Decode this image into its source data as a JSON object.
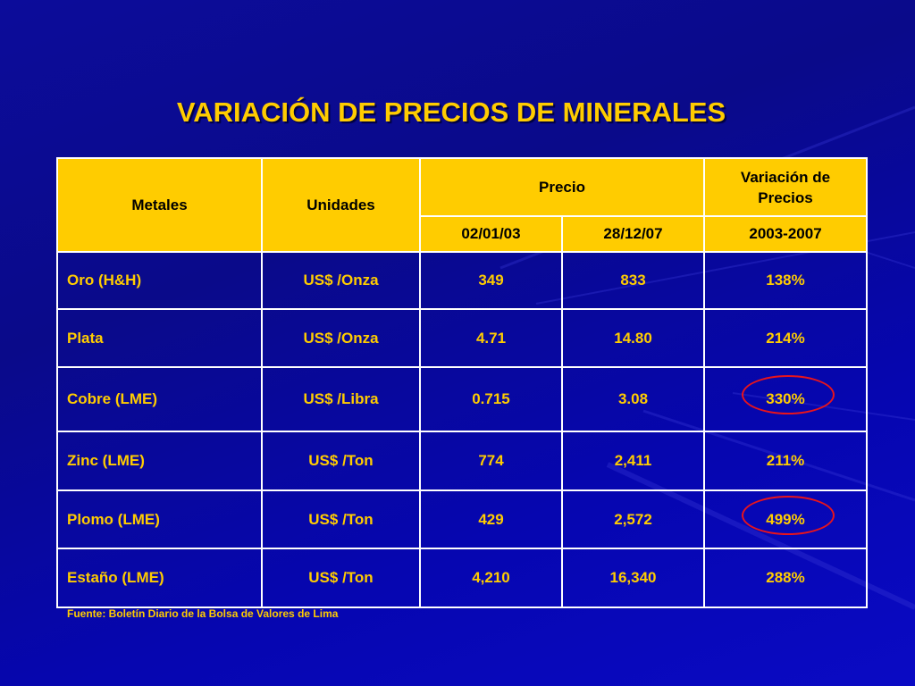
{
  "slide": {
    "title": "VARIACIÓN DE PRECIOS DE MINERALES",
    "source_note": "Fuente: Boletín Diario de la Bolsa de Valores de Lima"
  },
  "table": {
    "headers": {
      "metales": "Metales",
      "unidades": "Unidades",
      "precio": "Precio",
      "variacion_line1": "Variación de",
      "variacion_line2": "Precios",
      "date1": "02/01/03",
      "date2": "28/12/07",
      "period": "2003-2007"
    },
    "rows": [
      {
        "metal": "Oro (H&H)",
        "unit": "US$ /Onza",
        "p2003": "349",
        "p2007": "833",
        "variation": "138%",
        "highlighted": false
      },
      {
        "metal": "Plata",
        "unit": "US$ /Onza",
        "p2003": "4.71",
        "p2007": "14.80",
        "variation": "214%",
        "highlighted": false
      },
      {
        "metal": "Cobre (LME)",
        "unit": "US$ /Libra",
        "p2003": "0.715",
        "p2007": "3.08",
        "variation": "330%",
        "highlighted": true
      },
      {
        "metal": "Zinc (LME)",
        "unit": "US$ /Ton",
        "p2003": "774",
        "p2007": "2,411",
        "variation": "211%",
        "highlighted": false
      },
      {
        "metal": "Plomo (LME)",
        "unit": "US$ /Ton",
        "p2003": "429",
        "p2007": "2,572",
        "variation": "499%",
        "highlighted": true
      },
      {
        "metal": "Estaño (LME)",
        "unit": "US$ /Ton",
        "p2003": "4,210",
        "p2007": "16,340",
        "variation": "288%",
        "highlighted": false
      }
    ]
  },
  "colors": {
    "background": "#0a0a9a",
    "title": "#ffcc00",
    "header_fill": "#ffcc00",
    "cell_text": "#ffcc00",
    "grid": "#ffffff",
    "highlight_ring": "#e8141c"
  }
}
